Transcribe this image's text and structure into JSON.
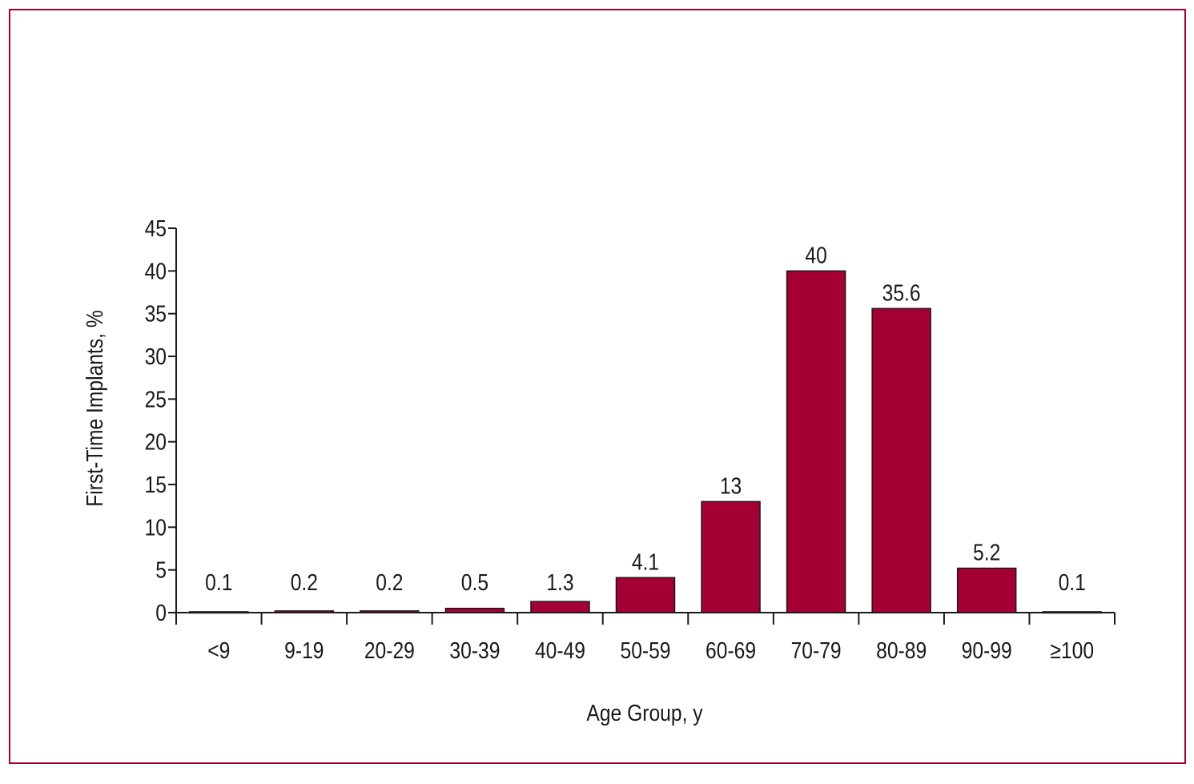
{
  "chart_data": {
    "type": "bar",
    "title": "",
    "xlabel": "Age Group, y",
    "ylabel": "First-Time Implants, %",
    "categories": [
      "<9",
      "9-19",
      "20-29",
      "30-39",
      "40-49",
      "50-59",
      "60-69",
      "70-79",
      "80-89",
      "90-99",
      "≥100"
    ],
    "values": [
      0.1,
      0.2,
      0.2,
      0.5,
      1.3,
      4.1,
      13,
      40,
      35.6,
      5.2,
      0.1
    ],
    "data_labels": [
      "0.1",
      "0.2",
      "0.2",
      "0.5",
      "1.3",
      "4.1",
      "13",
      "40",
      "35.6",
      "5.2",
      "0.1"
    ],
    "ylim": [
      0,
      45
    ],
    "yticks": [
      0,
      5,
      10,
      15,
      20,
      25,
      30,
      35,
      40,
      45
    ],
    "grid": false,
    "bar_color": "#a50034",
    "frame_color": "#a50034"
  }
}
